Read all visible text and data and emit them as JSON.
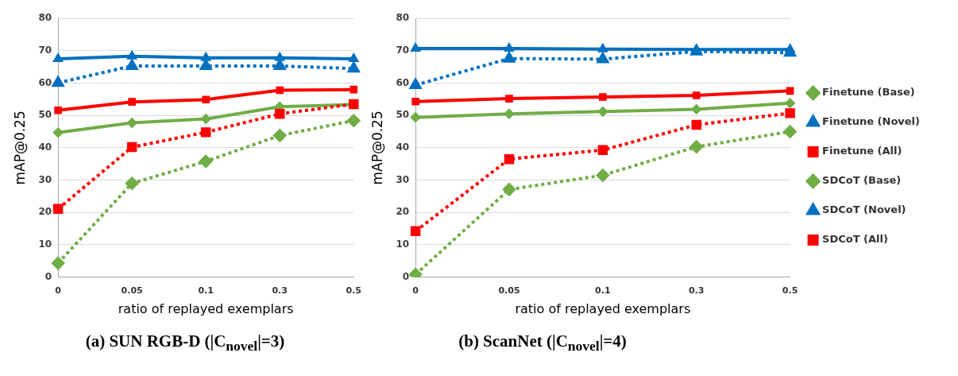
{
  "chart_data": [
    {
      "type": "line",
      "title": "(a) SUN RGB-D (|C$_{novel}$|=3)",
      "xlabel": "ratio of replayed exemplars",
      "ylabel": "mAP@0.25",
      "categories": [
        "0",
        "0.05",
        "0.1",
        "0.3",
        "0.5"
      ],
      "ylim": [
        0,
        80
      ],
      "yticks": [
        0,
        10,
        20,
        30,
        40,
        50,
        60,
        70,
        80
      ],
      "grid": "y",
      "legend": false,
      "series": [
        {
          "color": "#70ad47",
          "line_style": "dotted",
          "marker": "diamond",
          "values": [
            4.3,
            29.0,
            35.8,
            43.8,
            48.4
          ]
        },
        {
          "color": "#0070c0",
          "line_style": "dotted",
          "marker": "triangle",
          "values": [
            60.1,
            65.3,
            65.3,
            65.3,
            64.5
          ]
        },
        {
          "color": "#ff0000",
          "line_style": "dotted",
          "marker": "square",
          "values": [
            21.1,
            40.2,
            44.8,
            50.5,
            53.5
          ]
        },
        {
          "color": "#70ad47",
          "line_style": "solid",
          "marker": "diamond",
          "values": [
            44.7,
            47.7,
            48.9,
            52.7,
            53.4
          ]
        },
        {
          "color": "#0070c0",
          "line_style": "solid",
          "marker": "triangle",
          "values": [
            67.5,
            68.3,
            67.8,
            67.8,
            67.5
          ]
        },
        {
          "color": "#ff0000",
          "line_style": "solid",
          "marker": "square",
          "values": [
            51.6,
            54.2,
            54.9,
            57.8,
            58.0
          ]
        }
      ]
    },
    {
      "type": "line",
      "title": "(b) ScanNet (|C$_{novel}$|=4)",
      "xlabel": "ratio of replayed exemplars",
      "ylabel": "mAP@0.25",
      "categories": [
        "0",
        "0.05",
        "0.1",
        "0.3",
        "0.5"
      ],
      "ylim": [
        0,
        80
      ],
      "yticks": [
        0,
        10,
        20,
        30,
        40,
        50,
        60,
        70,
        80
      ],
      "grid": "y",
      "legend": "right",
      "series": [
        {
          "name": "Finetune (Base)",
          "color": "#70ad47",
          "line_style": "dotted",
          "marker": "diamond",
          "values": [
            0.8,
            27.1,
            31.5,
            40.3,
            45.0
          ]
        },
        {
          "name": "Finetune (Novel)",
          "color": "#0070c0",
          "line_style": "dotted",
          "marker": "triangle",
          "values": [
            59.4,
            67.6,
            67.4,
            69.8,
            69.4
          ]
        },
        {
          "name": "Finetune (All)",
          "color": "#ff0000",
          "line_style": "dotted",
          "marker": "square",
          "values": [
            14.2,
            36.5,
            39.3,
            47.1,
            50.7
          ]
        },
        {
          "name": "SDCoT (Base)",
          "color": "#70ad47",
          "line_style": "solid",
          "marker": "diamond",
          "values": [
            49.4,
            50.5,
            51.2,
            51.9,
            53.8
          ]
        },
        {
          "name": "SDCoT (Novel)",
          "color": "#0070c0",
          "line_style": "solid",
          "marker": "triangle",
          "values": [
            70.7,
            70.7,
            70.5,
            70.4,
            70.4
          ]
        },
        {
          "name": "SDCoT (All)",
          "color": "#ff0000",
          "line_style": "solid",
          "marker": "square",
          "values": [
            54.3,
            55.2,
            55.7,
            56.2,
            57.6
          ]
        }
      ]
    }
  ]
}
